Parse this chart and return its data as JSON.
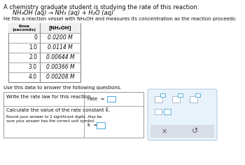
{
  "page_bg": "#ffffff",
  "title_line1": "A chemistry graduate student is studying the rate of this reaction:",
  "reaction": "NH₄OH (aq) → NH₃ (aq) + H₂O (aq)",
  "intro_line": "He fills a reaction vessel with NH₄OH and measures its concentration as the reaction proceeds:",
  "table_header_col1": "time\n(seconds)",
  "table_header_col2": "[NH₄OH]",
  "table_data": [
    [
      "0",
      "0.0200 M"
    ],
    [
      "1.0",
      "0.0114 M"
    ],
    [
      "2.0",
      "0.00644 M"
    ],
    [
      "3.0",
      "0.00366 M"
    ],
    [
      "4.0",
      "0.00208 M"
    ]
  ],
  "use_data_text": "Use this data to answer the following questions.",
  "q1_label": "Write the rate law for this reaction.",
  "q1_rate_text": "rate  =  k",
  "q2_label": "Calculate the value of the rate constant k̅.",
  "q2_subtext": "Round your answer to 2 significant digits. Also be\nsure your answer has the correct unit symbol.",
  "q2_k_text": "k  =",
  "table_border_color": "#888888",
  "answer_box_color": "#5aafe0",
  "panel_bg": "#e8f2fa",
  "panel_border": "#b0c8e0",
  "btn_bg": "#d8dde8",
  "icon_outline": "#aabbcc",
  "icon_accent": "#5aafe0"
}
